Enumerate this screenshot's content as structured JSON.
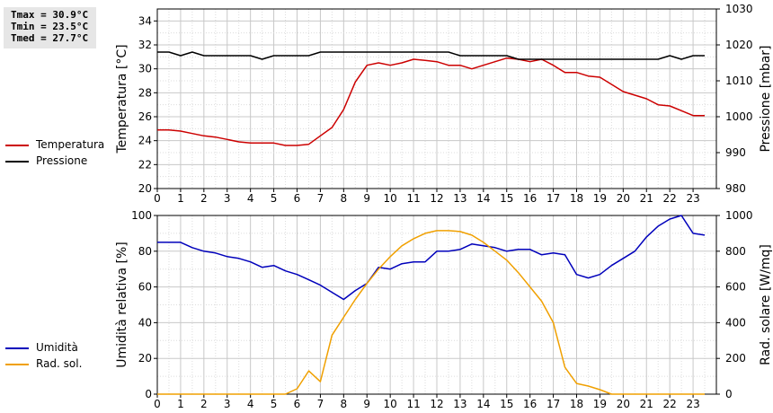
{
  "stats": {
    "tmax": "Tmax = 30.9°C",
    "tmin": "Tmin = 23.5°C",
    "tmed": "Tmed = 27.7°C"
  },
  "legend_top": [
    {
      "label": "Temperatura",
      "color": "#cc0000"
    },
    {
      "label": "Pressione",
      "color": "#000000"
    }
  ],
  "legend_bottom": [
    {
      "label": "Umidità",
      "color": "#0000bb"
    },
    {
      "label": "Rad. sol.",
      "color": "#f0a000"
    }
  ],
  "chart_data": [
    {
      "type": "line",
      "ylabel": "Temperatura [°C]",
      "y2label": "Pressione [mbar]",
      "ylim": [
        20,
        35
      ],
      "y2lim": [
        980,
        1030
      ],
      "xlim": [
        0,
        24
      ],
      "yticks": [
        20,
        22,
        24,
        26,
        28,
        30,
        32,
        34
      ],
      "y2ticks": [
        980,
        990,
        1000,
        1010,
        1020,
        1030
      ],
      "xticks": [
        0,
        1,
        2,
        3,
        4,
        5,
        6,
        7,
        8,
        9,
        10,
        11,
        12,
        13,
        14,
        15,
        16,
        17,
        18,
        19,
        20,
        21,
        22,
        23
      ],
      "grid": true,
      "series": [
        {
          "name": "Temperatura",
          "axis": "left",
          "color": "#cc0000",
          "x": [
            0,
            0.5,
            1,
            1.5,
            2,
            2.5,
            3,
            3.5,
            4,
            4.5,
            5,
            5.5,
            6,
            6.5,
            7,
            7.5,
            8,
            8.5,
            9,
            9.5,
            10,
            10.5,
            11,
            11.5,
            12,
            12.5,
            13,
            13.5,
            14,
            14.5,
            15,
            15.5,
            16,
            16.5,
            17,
            17.5,
            18,
            18.5,
            19,
            19.5,
            20,
            20.5,
            21,
            21.5,
            22,
            22.5,
            23,
            23.5
          ],
          "values": [
            24.9,
            24.9,
            24.8,
            24.6,
            24.4,
            24.3,
            24.1,
            23.9,
            23.8,
            23.8,
            23.8,
            23.6,
            23.6,
            23.7,
            24.4,
            25.1,
            26.6,
            28.9,
            30.3,
            30.5,
            30.3,
            30.5,
            30.8,
            30.7,
            30.6,
            30.3,
            30.3,
            30.0,
            30.3,
            30.6,
            30.9,
            30.8,
            30.6,
            30.8,
            30.3,
            29.7,
            29.7,
            29.4,
            29.3,
            28.7,
            28.1,
            27.8,
            27.5,
            27.0,
            26.9,
            26.5,
            26.1,
            26.1
          ]
        },
        {
          "name": "Pressione",
          "axis": "right",
          "color": "#000000",
          "x": [
            0,
            0.5,
            1,
            1.5,
            2,
            2.5,
            3,
            3.5,
            4,
            4.5,
            5,
            5.5,
            6,
            6.5,
            7,
            7.5,
            8,
            8.5,
            9,
            9.5,
            10,
            10.5,
            11,
            11.5,
            12,
            12.5,
            13,
            13.5,
            14,
            14.5,
            15,
            15.5,
            16,
            16.5,
            17,
            17.5,
            18,
            18.5,
            19,
            19.5,
            20,
            20.5,
            21,
            21.5,
            22,
            22.5,
            23,
            23.5
          ],
          "values": [
            1018,
            1018,
            1017,
            1018,
            1017,
            1017,
            1017,
            1017,
            1017,
            1016,
            1017,
            1017,
            1017,
            1017,
            1018,
            1018,
            1018,
            1018,
            1018,
            1018,
            1018,
            1018,
            1018,
            1018,
            1018,
            1018,
            1017,
            1017,
            1017,
            1017,
            1017,
            1016,
            1016,
            1016,
            1016,
            1016,
            1016,
            1016,
            1016,
            1016,
            1016,
            1016,
            1016,
            1016,
            1017,
            1016,
            1017,
            1017
          ]
        }
      ]
    },
    {
      "type": "line",
      "ylabel": "Umidità relativa [%]",
      "y2label": "Rad. solare [W/mq]",
      "ylim": [
        0,
        100
      ],
      "y2lim": [
        0,
        1000
      ],
      "xlim": [
        0,
        24
      ],
      "yticks": [
        0,
        20,
        40,
        60,
        80,
        100
      ],
      "y2ticks": [
        0,
        200,
        400,
        600,
        800,
        1000
      ],
      "xticks": [
        0,
        1,
        2,
        3,
        4,
        5,
        6,
        7,
        8,
        9,
        10,
        11,
        12,
        13,
        14,
        15,
        16,
        17,
        18,
        19,
        20,
        21,
        22,
        23
      ],
      "grid": true,
      "series": [
        {
          "name": "Umidità",
          "axis": "left",
          "color": "#0000bb",
          "x": [
            0,
            0.5,
            1,
            1.5,
            2,
            2.5,
            3,
            3.5,
            4,
            4.5,
            5,
            5.5,
            6,
            6.5,
            7,
            7.5,
            8,
            8.5,
            9,
            9.5,
            10,
            10.5,
            11,
            11.5,
            12,
            12.5,
            13,
            13.5,
            14,
            14.5,
            15,
            15.5,
            16,
            16.5,
            17,
            17.5,
            18,
            18.5,
            19,
            19.5,
            20,
            20.5,
            21,
            21.5,
            22,
            22.5,
            23,
            23.5
          ],
          "values": [
            85,
            85,
            85,
            82,
            80,
            79,
            77,
            76,
            74,
            71,
            72,
            69,
            67,
            64,
            61,
            57,
            53,
            58,
            62,
            71,
            70,
            73,
            74,
            74,
            80,
            80,
            81,
            84,
            83,
            82,
            80,
            81,
            81,
            78,
            79,
            78,
            67,
            65,
            67,
            72,
            76,
            80,
            88,
            94,
            98,
            100,
            90,
            89
          ]
        },
        {
          "name": "Rad. sol.",
          "axis": "right",
          "color": "#f0a000",
          "x": [
            0,
            0.5,
            1,
            1.5,
            2,
            2.5,
            3,
            3.5,
            4,
            4.5,
            5,
            5.5,
            6,
            6.5,
            7,
            7.5,
            8,
            8.5,
            9,
            9.5,
            10,
            10.5,
            11,
            11.5,
            12,
            12.5,
            13,
            13.5,
            14,
            14.5,
            15,
            15.5,
            16,
            16.5,
            17,
            17.5,
            18,
            18.5,
            19,
            19.5,
            20,
            20.5,
            21,
            21.5,
            22,
            22.5,
            23,
            23.5
          ],
          "values": [
            0,
            0,
            0,
            0,
            0,
            0,
            0,
            0,
            0,
            0,
            0,
            0,
            30,
            130,
            70,
            330,
            430,
            530,
            620,
            700,
            770,
            830,
            870,
            900,
            915,
            915,
            910,
            890,
            850,
            800,
            750,
            680,
            600,
            520,
            400,
            150,
            60,
            45,
            25,
            0,
            0,
            0,
            0,
            0,
            0,
            0,
            0,
            0
          ]
        }
      ]
    }
  ]
}
